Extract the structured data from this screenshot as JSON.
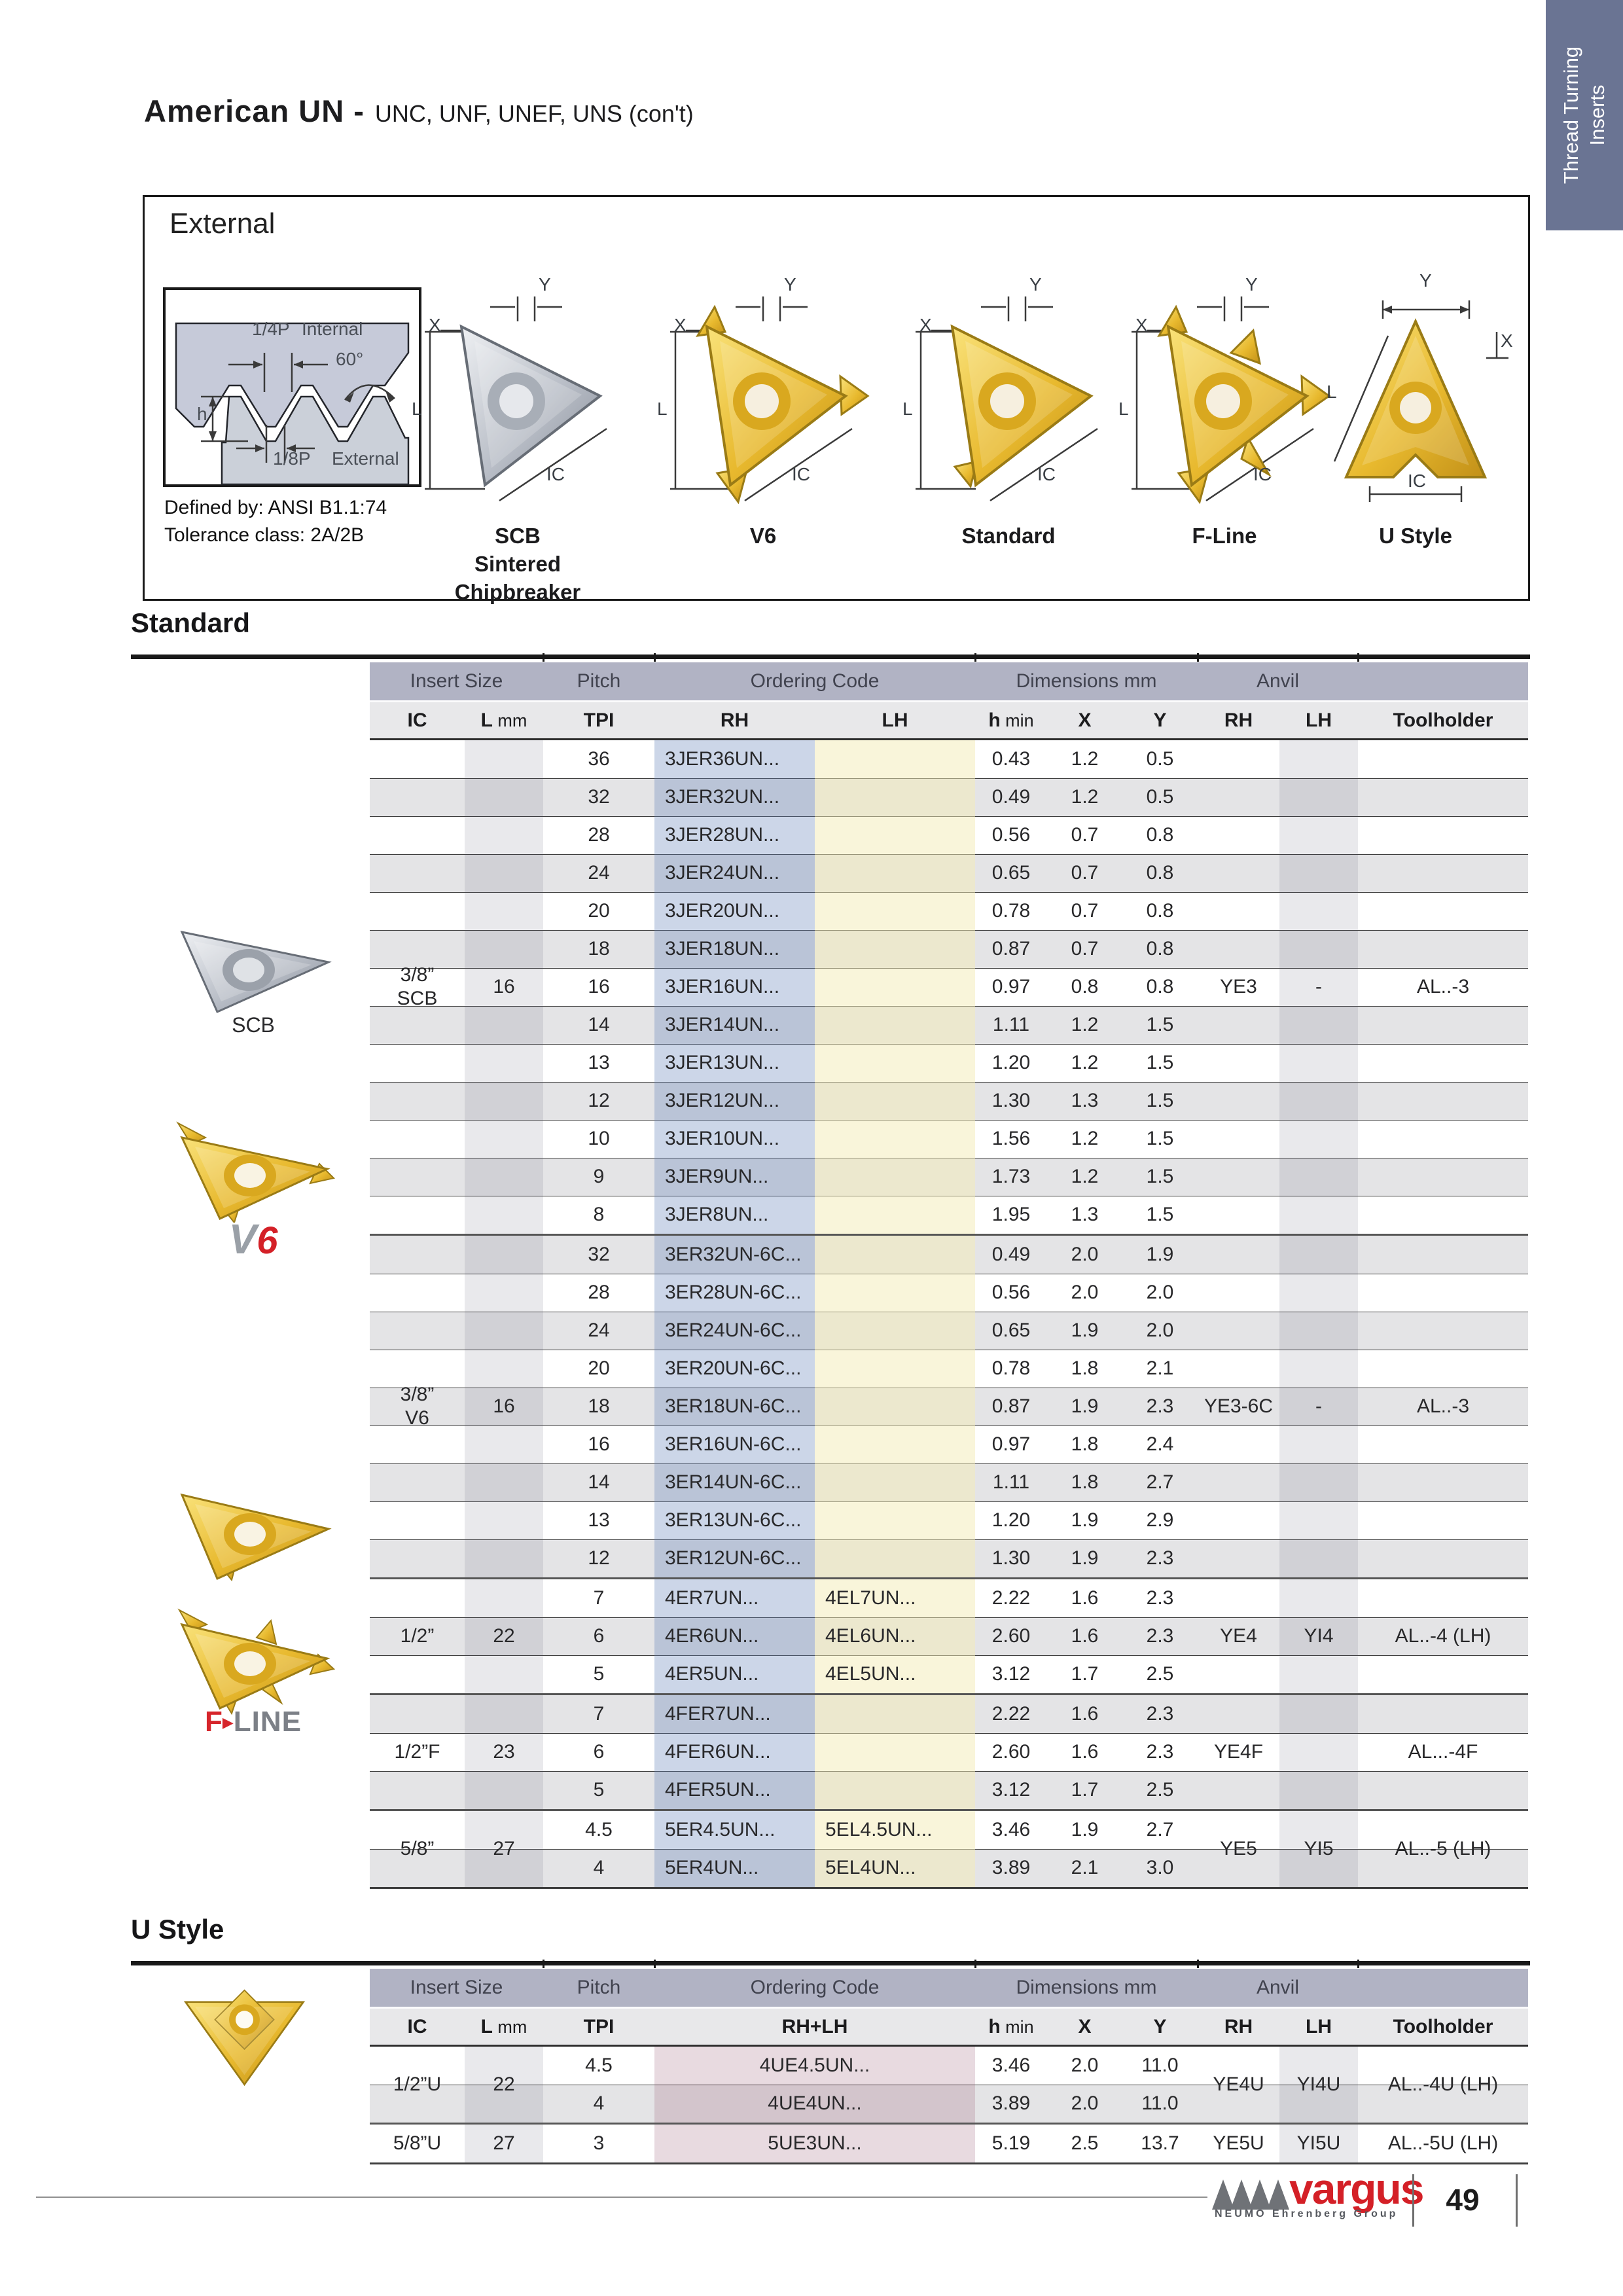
{
  "colors": {
    "side_tab": "#6a7493",
    "header_band": "#b1b3c4",
    "subheader_band": "#e8e8ea",
    "row_alt": "#e4e4e6",
    "ordering_rh_tint": "rgba(99,130,186,0.33)",
    "ordering_lh_tint": "rgba(244,235,181,0.5)",
    "gray_col_tint": "rgba(70,76,96,0.12)",
    "ustyle_code_tint": "rgba(150,85,115,0.22)",
    "accent_red": "#d42027",
    "gold": "#e8b92e",
    "silver": "#b9bec7"
  },
  "side_tab": {
    "line1": "Thread Turning",
    "line2": "Inserts"
  },
  "header": {
    "title": "American UN -",
    "subtitle": "UNC, UNF, UNEF, UNS (con't)"
  },
  "external": {
    "heading": "External",
    "profile": {
      "quarter_p": "1/4P",
      "internal": "Internal",
      "angle": "60°",
      "h": "h",
      "eighth_p": "1/8P",
      "external": "External"
    },
    "defined_by": "Defined by: ANSI B1.1:74",
    "tolerance": "Tolerance class: 2A/2B",
    "dims": {
      "y": "Y",
      "x": "X",
      "l": "L",
      "ic": "IC"
    },
    "figures": [
      {
        "style": "scb",
        "caption_lines": [
          "SCB",
          "Sintered",
          "Chipbreaker"
        ]
      },
      {
        "style": "v6",
        "caption_lines": [
          "V6"
        ]
      },
      {
        "style": "standard",
        "caption_lines": [
          "Standard"
        ]
      },
      {
        "style": "fline",
        "caption_lines": [
          "F-Line"
        ]
      },
      {
        "style": "ustyle",
        "caption_lines": [
          "U Style"
        ]
      }
    ]
  },
  "standard": {
    "heading": "Standard",
    "photos": {
      "scb_caption": "SCB",
      "v6_logo_v": "V",
      "v6_logo_6": "6",
      "fline_logo_f": "F",
      "fline_logo_arrow": "▶",
      "fline_logo_rest": "LINE"
    },
    "table": {
      "group_headers": [
        {
          "label": "Insert Size",
          "span": 2
        },
        {
          "label": "Pitch",
          "span": 1
        },
        {
          "label": "Ordering Code",
          "span": 2
        },
        {
          "label": "Dimensions mm",
          "span": 3
        },
        {
          "label": "Anvil",
          "span": 2
        },
        {
          "label": "",
          "span": 1
        }
      ],
      "columns": [
        {
          "b": "IC"
        },
        {
          "b": "L",
          "r": "mm"
        },
        {
          "b": "TPI"
        },
        {
          "b": "RH"
        },
        {
          "b": "LH"
        },
        {
          "b": "h",
          "r": "min"
        },
        {
          "b": "X"
        },
        {
          "b": "Y"
        },
        {
          "b": "RH"
        },
        {
          "b": "LH"
        },
        {
          "b": "Toolholder"
        }
      ],
      "groups": [
        {
          "ic": [
            "3/8”",
            "SCB"
          ],
          "l": "16",
          "anvil_rh": "YE3",
          "anvil_lh": "-",
          "toolholder": "AL..-3",
          "rows": [
            [
              "36",
              "3JER36UN...",
              "",
              "0.43",
              "1.2",
              "0.5"
            ],
            [
              "32",
              "3JER32UN...",
              "",
              "0.49",
              "1.2",
              "0.5"
            ],
            [
              "28",
              "3JER28UN...",
              "",
              "0.56",
              "0.7",
              "0.8"
            ],
            [
              "24",
              "3JER24UN...",
              "",
              "0.65",
              "0.7",
              "0.8"
            ],
            [
              "20",
              "3JER20UN...",
              "",
              "0.78",
              "0.7",
              "0.8"
            ],
            [
              "18",
              "3JER18UN...",
              "",
              "0.87",
              "0.7",
              "0.8"
            ],
            [
              "16",
              "3JER16UN...",
              "",
              "0.97",
              "0.8",
              "0.8"
            ],
            [
              "14",
              "3JER14UN...",
              "",
              "1.11",
              "1.2",
              "1.5"
            ],
            [
              "13",
              "3JER13UN...",
              "",
              "1.20",
              "1.2",
              "1.5"
            ],
            [
              "12",
              "3JER12UN...",
              "",
              "1.30",
              "1.3",
              "1.5"
            ],
            [
              "10",
              "3JER10UN...",
              "",
              "1.56",
              "1.2",
              "1.5"
            ],
            [
              "9",
              "3JER9UN...",
              "",
              "1.73",
              "1.2",
              "1.5"
            ],
            [
              "8",
              "3JER8UN...",
              "",
              "1.95",
              "1.3",
              "1.5"
            ]
          ]
        },
        {
          "ic": [
            "3/8”",
            "V6"
          ],
          "l": "16",
          "anvil_rh": "YE3-6C",
          "anvil_lh": "-",
          "toolholder": "AL..-3",
          "rows": [
            [
              "32",
              "3ER32UN-6C...",
              "",
              "0.49",
              "2.0",
              "1.9"
            ],
            [
              "28",
              "3ER28UN-6C...",
              "",
              "0.56",
              "2.0",
              "2.0"
            ],
            [
              "24",
              "3ER24UN-6C...",
              "",
              "0.65",
              "1.9",
              "2.0"
            ],
            [
              "20",
              "3ER20UN-6C...",
              "",
              "0.78",
              "1.8",
              "2.1"
            ],
            [
              "18",
              "3ER18UN-6C...",
              "",
              "0.87",
              "1.9",
              "2.3"
            ],
            [
              "16",
              "3ER16UN-6C...",
              "",
              "0.97",
              "1.8",
              "2.4"
            ],
            [
              "14",
              "3ER14UN-6C...",
              "",
              "1.11",
              "1.8",
              "2.7"
            ],
            [
              "13",
              "3ER13UN-6C...",
              "",
              "1.20",
              "1.9",
              "2.9"
            ],
            [
              "12",
              "3ER12UN-6C...",
              "",
              "1.30",
              "1.9",
              "2.3"
            ]
          ]
        },
        {
          "ic": [
            "1/2”"
          ],
          "l": "22",
          "anvil_rh": "YE4",
          "anvil_lh": "YI4",
          "toolholder": "AL..-4 (LH)",
          "rows": [
            [
              "7",
              "4ER7UN...",
              "4EL7UN...",
              "2.22",
              "1.6",
              "2.3"
            ],
            [
              "6",
              "4ER6UN...",
              "4EL6UN...",
              "2.60",
              "1.6",
              "2.3"
            ],
            [
              "5",
              "4ER5UN...",
              "4EL5UN...",
              "3.12",
              "1.7",
              "2.5"
            ]
          ]
        },
        {
          "ic": [
            "1/2”F"
          ],
          "l": "23",
          "anvil_rh": "YE4F",
          "anvil_lh": "",
          "toolholder": "AL...-4F",
          "rows": [
            [
              "7",
              "4FER7UN...",
              "",
              "2.22",
              "1.6",
              "2.3"
            ],
            [
              "6",
              "4FER6UN...",
              "",
              "2.60",
              "1.6",
              "2.3"
            ],
            [
              "5",
              "4FER5UN...",
              "",
              "3.12",
              "1.7",
              "2.5"
            ]
          ]
        },
        {
          "ic": [
            "5/8”"
          ],
          "l": "27",
          "anvil_rh": "YE5",
          "anvil_lh": "YI5",
          "toolholder": "AL..-5 (LH)",
          "rows": [
            [
              "4.5",
              "5ER4.5UN...",
              "5EL4.5UN...",
              "3.46",
              "1.9",
              "2.7"
            ],
            [
              "4",
              "5ER4UN...",
              "5EL4UN...",
              "3.89",
              "2.1",
              "3.0"
            ]
          ]
        }
      ]
    }
  },
  "ustyle": {
    "heading": "U Style",
    "table": {
      "group_headers": [
        {
          "label": "Insert Size",
          "span": 2
        },
        {
          "label": "Pitch",
          "span": 1
        },
        {
          "label": "Ordering Code",
          "span": 1
        },
        {
          "label": "Dimensions mm",
          "span": 3
        },
        {
          "label": "Anvil",
          "span": 2
        },
        {
          "label": "",
          "span": 1
        }
      ],
      "columns": [
        {
          "b": "IC"
        },
        {
          "b": "L",
          "r": "mm"
        },
        {
          "b": "TPI"
        },
        {
          "b": "RH+LH"
        },
        {
          "b": "h",
          "r": "min"
        },
        {
          "b": "X"
        },
        {
          "b": "Y"
        },
        {
          "b": "RH"
        },
        {
          "b": "LH"
        },
        {
          "b": "Toolholder"
        }
      ],
      "groups": [
        {
          "ic": [
            "1/2”U"
          ],
          "l": "22",
          "anvil_rh": "YE4U",
          "anvil_lh": "YI4U",
          "toolholder": "AL..-4U (LH)",
          "rows": [
            [
              "4.5",
              "4UE4.5UN...",
              "3.46",
              "2.0",
              "11.0"
            ],
            [
              "4",
              "4UE4UN...",
              "3.89",
              "2.0",
              "11.0"
            ]
          ]
        },
        {
          "ic": [
            "5/8”U"
          ],
          "l": "27",
          "anvil_rh": "YE5U",
          "anvil_lh": "YI5U",
          "toolholder": "AL..-5U (LH)",
          "rows": [
            [
              "3",
              "5UE3UN...",
              "5.19",
              "2.5",
              "13.7"
            ]
          ]
        }
      ]
    }
  },
  "footer": {
    "logo": "vargus",
    "logo_sub": "NEUMO Ehrenberg Group",
    "page": "49"
  }
}
